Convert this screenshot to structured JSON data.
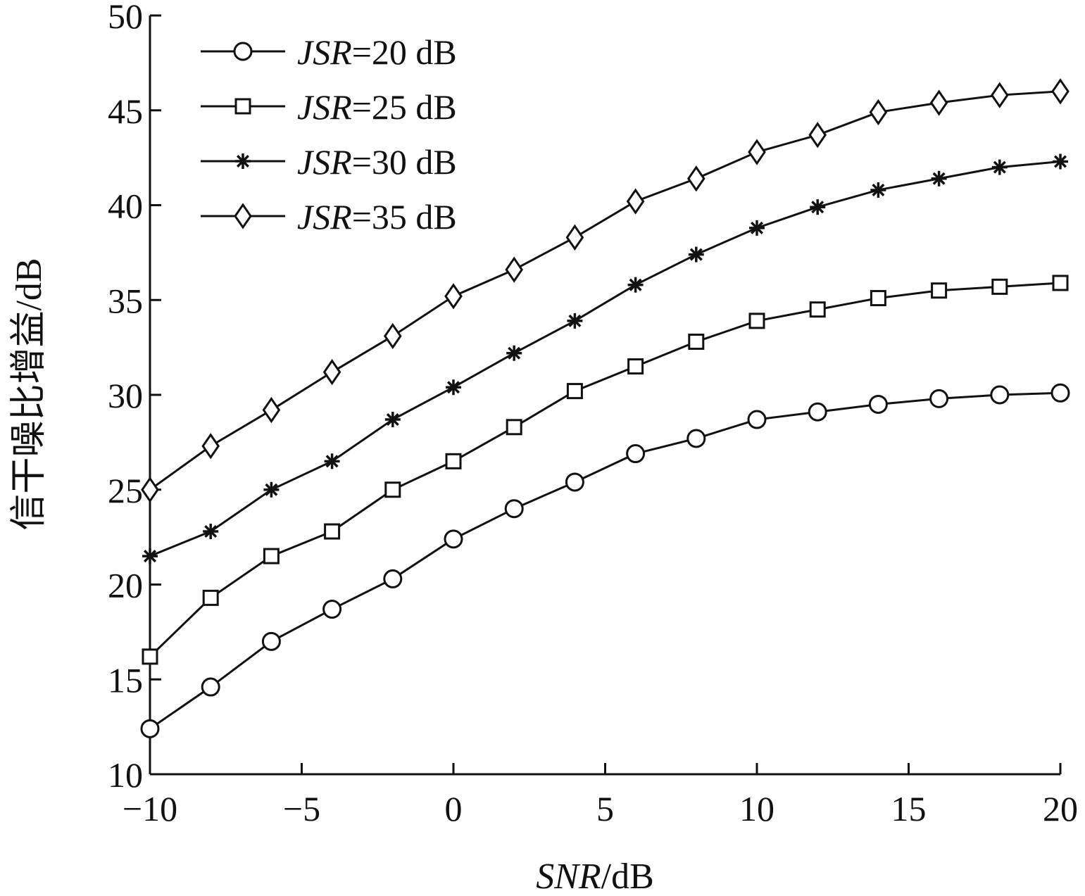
{
  "chart_data": {
    "type": "line",
    "title": "",
    "xlabel_italic": "SNR",
    "xlabel_unit": "/dB",
    "ylabel": "信干噪比增益/dB",
    "xlim": [
      -10,
      20
    ],
    "ylim": [
      10,
      50
    ],
    "xticks": [
      -10,
      -5,
      0,
      5,
      10,
      15,
      20
    ],
    "xtick_labels": [
      "−10",
      "−5",
      "0",
      "5",
      "10",
      "15",
      "20"
    ],
    "yticks": [
      10,
      15,
      20,
      25,
      30,
      35,
      40,
      45,
      50
    ],
    "ytick_labels": [
      "10",
      "15",
      "20",
      "25",
      "30",
      "35",
      "40",
      "45",
      "50"
    ],
    "grid": false,
    "legend_position": "top-left",
    "x": [
      -10,
      -8,
      -6,
      -4,
      -2,
      0,
      2,
      4,
      6,
      8,
      10,
      12,
      14,
      16,
      18,
      20
    ],
    "series": [
      {
        "name_italic": "JSR",
        "name_rest": "=20 dB",
        "marker": "circle",
        "values": [
          12.4,
          14.6,
          17.0,
          18.7,
          20.3,
          22.4,
          24.0,
          25.4,
          26.9,
          27.7,
          28.7,
          29.1,
          29.5,
          29.8,
          30.0,
          30.1
        ]
      },
      {
        "name_italic": "JSR",
        "name_rest": "=25 dB",
        "marker": "square",
        "values": [
          16.2,
          19.3,
          21.5,
          22.8,
          25.0,
          26.5,
          28.3,
          30.2,
          31.5,
          32.8,
          33.9,
          34.5,
          35.1,
          35.5,
          35.7,
          35.9
        ]
      },
      {
        "name_italic": "JSR",
        "name_rest": "=30 dB",
        "marker": "asterisk",
        "values": [
          21.5,
          22.8,
          25.0,
          26.5,
          28.7,
          30.4,
          32.2,
          33.9,
          35.8,
          37.4,
          38.8,
          39.9,
          40.8,
          41.4,
          42.0,
          42.3
        ]
      },
      {
        "name_italic": "JSR",
        "name_rest": "=35 dB",
        "marker": "diamond",
        "values": [
          25.0,
          27.3,
          29.2,
          31.2,
          33.1,
          35.2,
          36.6,
          38.3,
          40.2,
          41.4,
          42.8,
          43.7,
          44.9,
          45.4,
          45.8,
          46.0
        ]
      }
    ]
  }
}
